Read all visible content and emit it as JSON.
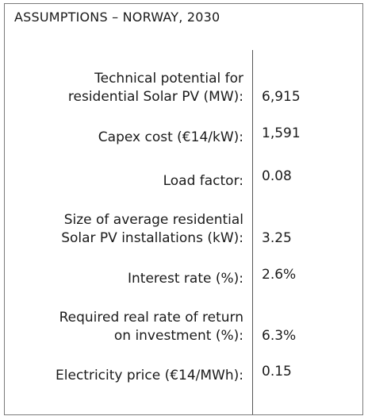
{
  "title": "ASSUMPTIONS – NORWAY, 2030",
  "rows": [
    {
      "label": "Technical potential for\nresidential Solar PV (MW):",
      "value": "6,915"
    },
    {
      "label": "Capex cost (€14/kW):",
      "value": "1,591"
    },
    {
      "label": "Load factor:",
      "value": "0.08"
    },
    {
      "label": "Size of average residential\nSolar PV installations (kW):",
      "value": "3.25"
    },
    {
      "label": "Interest rate (%):",
      "value": "2.6%"
    },
    {
      "label": "Required real rate of return\non investment (%):",
      "value": "6.3%"
    },
    {
      "label": "Electricity price (€14/MWh):",
      "value": "0.15"
    }
  ]
}
